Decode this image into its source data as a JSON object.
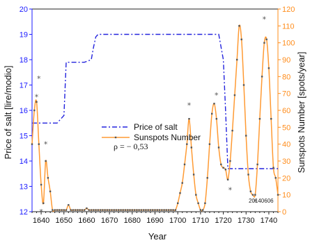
{
  "chart_data": {
    "type": "line",
    "xlabel": "Year",
    "ylabel_left": "Price of salt [lire/modio]",
    "ylabel_right": "Sunspots Number [spots/year]",
    "xlim": [
      1636,
      1744
    ],
    "ylim_left": [
      12,
      20
    ],
    "ylim_right": [
      0,
      120
    ],
    "x_ticks": [
      1640,
      1650,
      1660,
      1670,
      1680,
      1690,
      1700,
      1710,
      1720,
      1730,
      1740
    ],
    "y_ticks_left": [
      12,
      13,
      14,
      15,
      16,
      17,
      18,
      19,
      20
    ],
    "y_ticks_right": [
      0,
      10,
      20,
      30,
      40,
      50,
      60,
      70,
      80,
      90,
      100,
      110,
      120
    ],
    "grid": false,
    "legend_position": "center-left",
    "colors": {
      "left_axis": "#1a1aff",
      "right_axis": "#ff8c1a",
      "price_line": "#2222dd",
      "sunspot_line": "#ff9a33",
      "marker": "#555555"
    },
    "series": [
      {
        "name": "Price of salt",
        "axis": "left",
        "style": "dash-dot",
        "x": [
          1636,
          1647,
          1650,
          1651,
          1659,
          1662,
          1663,
          1664,
          1665,
          1718,
          1720,
          1721,
          1722,
          1744
        ],
        "y": [
          15.5,
          15.5,
          15.8,
          17.9,
          17.9,
          18.0,
          18.5,
          18.9,
          19.0,
          19.0,
          18.0,
          16.0,
          13.7,
          13.7
        ]
      },
      {
        "name": "Sunspots Number",
        "axis": "right",
        "style": "line-markers",
        "x": [
          1636,
          1637,
          1638,
          1639,
          1640,
          1641,
          1642,
          1643,
          1644,
          1645,
          1646,
          1647,
          1648,
          1649,
          1650,
          1651,
          1652,
          1653,
          1654,
          1655,
          1656,
          1657,
          1658,
          1659,
          1660,
          1661,
          1662,
          1663,
          1664,
          1665,
          1666,
          1667,
          1668,
          1669,
          1670,
          1671,
          1672,
          1673,
          1674,
          1675,
          1676,
          1677,
          1678,
          1679,
          1680,
          1681,
          1682,
          1683,
          1684,
          1685,
          1686,
          1687,
          1688,
          1689,
          1690,
          1691,
          1692,
          1693,
          1694,
          1695,
          1696,
          1697,
          1698,
          1699,
          1700,
          1701,
          1702,
          1703,
          1704,
          1705,
          1706,
          1707,
          1708,
          1709,
          1710,
          1711,
          1712,
          1713,
          1714,
          1715,
          1716,
          1717,
          1718,
          1719,
          1720,
          1721,
          1722,
          1723,
          1724,
          1725,
          1726,
          1727,
          1728,
          1729,
          1730,
          1731,
          1732,
          1733,
          1734,
          1735,
          1736,
          1737,
          1738,
          1739,
          1740,
          1741,
          1742,
          1743,
          1744
        ],
        "y": [
          40,
          60,
          65,
          40,
          16,
          5,
          30,
          20,
          12,
          1,
          1,
          1,
          1,
          1,
          1,
          1,
          4,
          1,
          1,
          1,
          1,
          1,
          1,
          1,
          2,
          1,
          1,
          1,
          1,
          1,
          1,
          1,
          1,
          1,
          1,
          1,
          1,
          1,
          1,
          1,
          1,
          1,
          1,
          1,
          1,
          1,
          1,
          1,
          1,
          1,
          1,
          1,
          1,
          1,
          1,
          1,
          1,
          1,
          1,
          1,
          1,
          1,
          1,
          1,
          5,
          11,
          17,
          28,
          40,
          55,
          38,
          22,
          10,
          5,
          1,
          1,
          5,
          20,
          40,
          58,
          64,
          55,
          38,
          28,
          26,
          25,
          19,
          30,
          48,
          69,
          90,
          110,
          102,
          75,
          45,
          22,
          12,
          10,
          10,
          28,
          55,
          80,
          100,
          102,
          85,
          55,
          26,
          20,
          10
        ]
      }
    ],
    "stars": [
      {
        "x": 1638,
        "y": 68
      },
      {
        "x": 1639,
        "y": 79
      },
      {
        "x": 1642,
        "y": 40
      },
      {
        "x": 1640,
        "y": 0
      },
      {
        "x": 1705,
        "y": 63
      },
      {
        "x": 1717,
        "y": 69
      },
      {
        "x": 1723,
        "y": 13
      },
      {
        "x": 1738,
        "y": 114
      },
      {
        "x": 1734,
        "y": 6
      }
    ],
    "annotations": {
      "rho": "ρ = − 0,53",
      "stamp": "20140606"
    }
  }
}
